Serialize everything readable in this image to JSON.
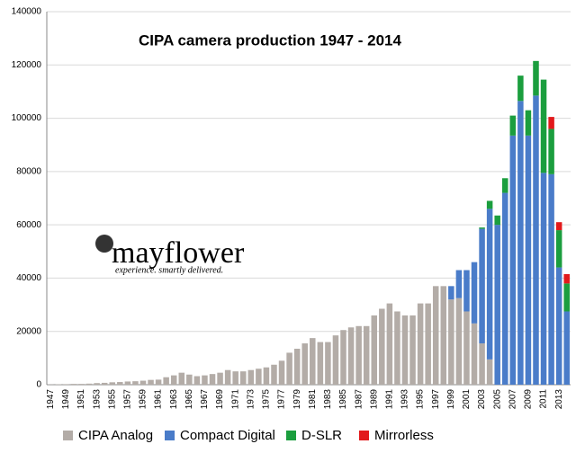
{
  "chart_data": {
    "type": "stacked_bar",
    "title": "CIPA  camera production 1947 - 2014",
    "watermark": "mayflower",
    "watermark_tagline": "experience. smartly delivered.",
    "categories": [
      "1947",
      null,
      "1949",
      null,
      "1951",
      null,
      "1953",
      null,
      "1955",
      null,
      "1957",
      null,
      "1959",
      null,
      "1961",
      null,
      "1963",
      null,
      "1965",
      null,
      "1967",
      null,
      "1969",
      null,
      "1971",
      null,
      "1973",
      null,
      "1975",
      null,
      "1977",
      null,
      "1979",
      null,
      "1981",
      null,
      "1983",
      null,
      "1985",
      null,
      "1987",
      null,
      "1989",
      null,
      "1991",
      null,
      "1993",
      null,
      "1995",
      null,
      "1997",
      null,
      "1999",
      null,
      "2001",
      null,
      "2003",
      null,
      "2005",
      null,
      "2007",
      null,
      "2009",
      null,
      "2011",
      null,
      "2013",
      null
    ],
    "series": [
      {
        "name": "CIPA Analog",
        "color": "#b3aca7",
        "values": [
          100,
          150,
          200,
          300,
          300,
          400,
          600,
          700,
          900,
          1000,
          1200,
          1300,
          1500,
          1800,
          1900,
          2800,
          3500,
          4500,
          3800,
          3200,
          3500,
          4000,
          4500,
          5500,
          5000,
          5000,
          5500,
          6000,
          6500,
          7500,
          9000,
          12000,
          13500,
          15500,
          17500,
          16000,
          16000,
          18500,
          20500,
          21500,
          22000,
          22000,
          26000,
          28500,
          30500,
          27500,
          26000,
          26000,
          30500,
          30500,
          37000,
          37000,
          32000,
          32500,
          27500,
          23000,
          15500,
          9500,
          0,
          0,
          0,
          0,
          0,
          0,
          0,
          0,
          0,
          0
        ]
      },
      {
        "name": "Compact Digital",
        "color": "#4a7cc9",
        "values": [
          0,
          0,
          0,
          0,
          0,
          0,
          0,
          0,
          0,
          0,
          0,
          0,
          0,
          0,
          0,
          0,
          0,
          0,
          0,
          0,
          0,
          0,
          0,
          0,
          0,
          0,
          0,
          0,
          0,
          0,
          0,
          0,
          0,
          0,
          0,
          0,
          0,
          0,
          0,
          0,
          0,
          0,
          0,
          0,
          0,
          0,
          0,
          0,
          0,
          0,
          0,
          0,
          5000,
          10500,
          15500,
          23000,
          43000,
          56500,
          60000,
          72000,
          93500,
          106500,
          93500,
          108500,
          79500,
          79000,
          44000,
          27500
        ]
      },
      {
        "name": "D-SLR",
        "color": "#1b9e3e",
        "values": [
          0,
          0,
          0,
          0,
          0,
          0,
          0,
          0,
          0,
          0,
          0,
          0,
          0,
          0,
          0,
          0,
          0,
          0,
          0,
          0,
          0,
          0,
          0,
          0,
          0,
          0,
          0,
          0,
          0,
          0,
          0,
          0,
          0,
          0,
          0,
          0,
          0,
          0,
          0,
          0,
          0,
          0,
          0,
          0,
          0,
          0,
          0,
          0,
          0,
          0,
          0,
          0,
          0,
          0,
          0,
          0,
          500,
          3000,
          3500,
          5500,
          7500,
          9500,
          9500,
          13000,
          35000,
          17000,
          14000,
          10500
        ]
      },
      {
        "name": "Mirrorless",
        "color": "#e2191b",
        "values": [
          0,
          0,
          0,
          0,
          0,
          0,
          0,
          0,
          0,
          0,
          0,
          0,
          0,
          0,
          0,
          0,
          0,
          0,
          0,
          0,
          0,
          0,
          0,
          0,
          0,
          0,
          0,
          0,
          0,
          0,
          0,
          0,
          0,
          0,
          0,
          0,
          0,
          0,
          0,
          0,
          0,
          0,
          0,
          0,
          0,
          0,
          0,
          0,
          0,
          0,
          0,
          0,
          0,
          0,
          0,
          0,
          0,
          0,
          0,
          0,
          0,
          0,
          0,
          0,
          0,
          4500,
          3000,
          3500
        ]
      }
    ],
    "ylim": [
      0,
      140000
    ],
    "yticks": [
      0,
      20000,
      40000,
      60000,
      80000,
      100000,
      120000,
      140000
    ],
    "grid": true,
    "legend": "bottom"
  }
}
